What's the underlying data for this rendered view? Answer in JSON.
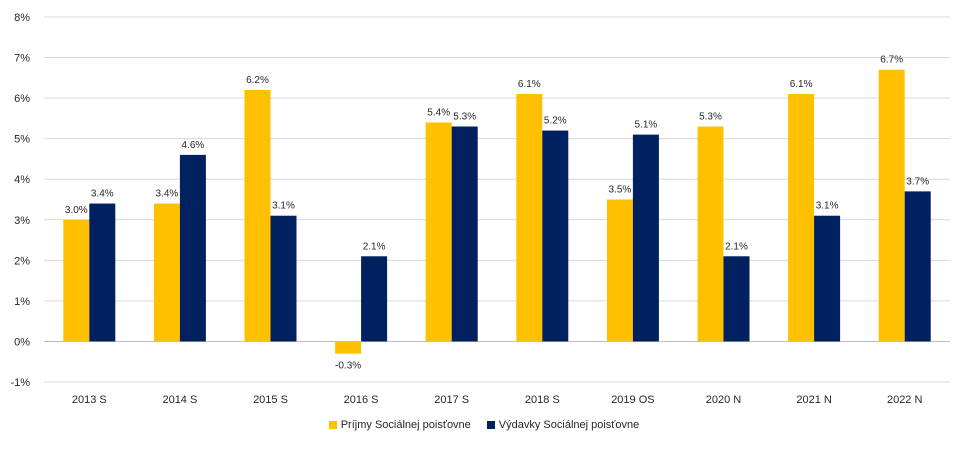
{
  "chart_data": {
    "type": "bar",
    "title": "",
    "xlabel": "",
    "ylabel": "",
    "ylim": [
      -0.01,
      0.08
    ],
    "y_ticks": [
      "-1%",
      "0%",
      "1%",
      "2%",
      "3%",
      "4%",
      "5%",
      "6%",
      "7%",
      "8%"
    ],
    "y_tick_values": [
      -0.01,
      0,
      0.01,
      0.02,
      0.03,
      0.04,
      0.05,
      0.06,
      0.07,
      0.08
    ],
    "grid": true,
    "legend_position": "bottom",
    "categories": [
      "2013 S",
      "2014 S",
      "2015 S",
      "2016 S",
      "2017 S",
      "2018 S",
      "2019 OS",
      "2020 N",
      "2021 N",
      "2022 N"
    ],
    "series": [
      {
        "name": "Príjmy Sociálnej poisťovne",
        "color": "#FFC000",
        "values": [
          0.03,
          0.034,
          0.062,
          -0.003,
          0.054,
          0.061,
          0.035,
          0.053,
          0.061,
          0.067
        ],
        "labels": [
          "3.0%",
          "3.4%",
          "6.2%",
          "-0.3%",
          "5.4%",
          "6.1%",
          "3.5%",
          "5.3%",
          "6.1%",
          "6.7%"
        ]
      },
      {
        "name": "Výdavky Sociálnej poisťovne",
        "color": "#002060",
        "values": [
          0.034,
          0.046,
          0.031,
          0.021,
          0.053,
          0.052,
          0.051,
          0.021,
          0.031,
          0.037
        ],
        "labels": [
          "3.4%",
          "4.6%",
          "3.1%",
          "2.1%",
          "5.3%",
          "5.2%",
          "5.1%",
          "2.1%",
          "3.1%",
          "3.7%"
        ]
      }
    ]
  }
}
